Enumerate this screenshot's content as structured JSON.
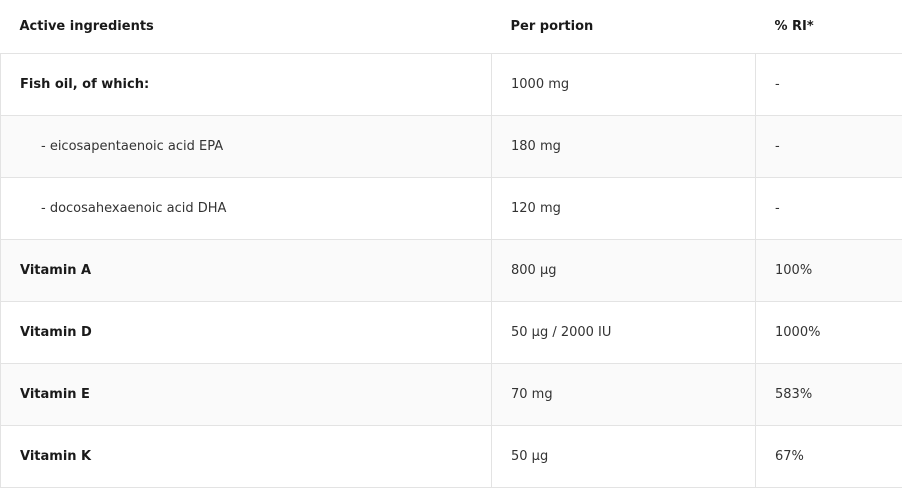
{
  "headers": [
    "Active ingredients",
    "Per portion",
    "% RI*"
  ],
  "rows": [
    {
      "name": "Fish oil, of which:",
      "portion": "1000 mg",
      "ri": "-"
    },
    {
      "name": "- eicosapentaenoic acid EPA",
      "portion": "180 mg",
      "ri": "-"
    },
    {
      "name": "- docosahexaenoic acid DHA",
      "portion": "120 mg",
      "ri": "-"
    },
    {
      "name": "Vitamin A",
      "portion": "800 µg",
      "ri": "100%"
    },
    {
      "name": "Vitamin D",
      "portion": "50 µg / 2000 IU",
      "ri": "1000%"
    },
    {
      "name": "Vitamin E",
      "portion": "70 mg",
      "ri": "583%"
    },
    {
      "name": "Vitamin K",
      "portion": "50 µg",
      "ri": "67%"
    }
  ]
}
